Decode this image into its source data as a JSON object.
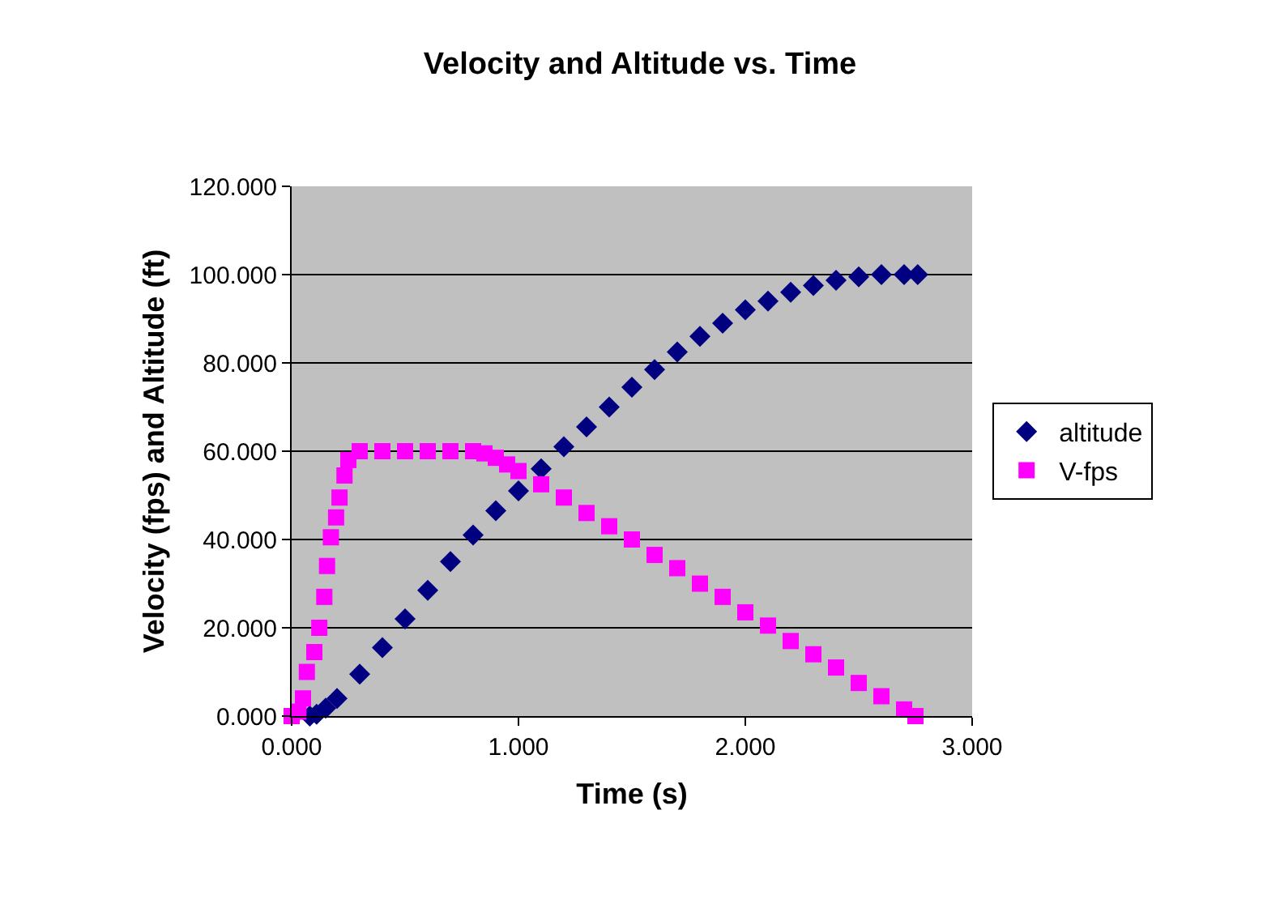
{
  "chart_data": {
    "type": "scatter",
    "title": "Velocity and Altitude vs. Time",
    "xlabel": "Time (s)",
    "ylabel": "Velocity (fps) and Altitude (ft)",
    "xlim": [
      0,
      3
    ],
    "xticks": [
      {
        "value": 0,
        "label": "0.000"
      },
      {
        "value": 1,
        "label": "1.000"
      },
      {
        "value": 2,
        "label": "2.000"
      },
      {
        "value": 3,
        "label": "3.000"
      }
    ],
    "ylim": [
      0,
      120
    ],
    "yticks": [
      {
        "value": 0,
        "label": "0.000"
      },
      {
        "value": 20,
        "label": "20.000"
      },
      {
        "value": 40,
        "label": "40.000"
      },
      {
        "value": 60,
        "label": "60.000"
      },
      {
        "value": 80,
        "label": "80.000"
      },
      {
        "value": 100,
        "label": "100.000"
      },
      {
        "value": 120,
        "label": "120.000"
      }
    ],
    "grid": "y",
    "legend": "right",
    "series": [
      {
        "name": "altitude",
        "color": "#000080",
        "marker": "diamond",
        "x": [
          0.08,
          0.11,
          0.15,
          0.2,
          0.3,
          0.4,
          0.5,
          0.6,
          0.7,
          0.8,
          0.9,
          1.0,
          1.1,
          1.2,
          1.3,
          1.4,
          1.5,
          1.6,
          1.7,
          1.8,
          1.9,
          2.0,
          2.1,
          2.2,
          2.3,
          2.4,
          2.5,
          2.6,
          2.7,
          2.76
        ],
        "values": [
          0,
          0.4,
          1.8,
          4,
          9.5,
          15.5,
          22,
          28.5,
          35,
          41,
          46.5,
          51,
          56,
          61,
          65.5,
          70,
          74.5,
          78.5,
          82.5,
          86,
          89,
          92,
          94,
          96,
          97.5,
          98.7,
          99.5,
          100,
          100,
          100
        ]
      },
      {
        "name": "V-fps",
        "color": "#ff00ff",
        "marker": "square",
        "x": [
          0,
          0.03,
          0.05,
          0.067,
          0.1,
          0.122,
          0.144,
          0.156,
          0.173,
          0.196,
          0.211,
          0.233,
          0.25,
          0.3,
          0.4,
          0.5,
          0.6,
          0.7,
          0.8,
          0.85,
          0.9,
          0.95,
          1.0,
          1.1,
          1.2,
          1.3,
          1.4,
          1.5,
          1.6,
          1.7,
          1.8,
          1.9,
          2.0,
          2.1,
          2.2,
          2.3,
          2.4,
          2.5,
          2.6,
          2.7,
          2.75
        ],
        "values": [
          0,
          1,
          4,
          10,
          14.5,
          20,
          27,
          34,
          40.5,
          45,
          49.5,
          54.5,
          58,
          60,
          60,
          60,
          60,
          60,
          60,
          59.5,
          58.5,
          57,
          55.5,
          52.5,
          49.5,
          46,
          43,
          40,
          36.5,
          33.5,
          30,
          27,
          23.5,
          20.5,
          17,
          14,
          11,
          7.5,
          4.5,
          1.5,
          0
        ]
      }
    ]
  }
}
